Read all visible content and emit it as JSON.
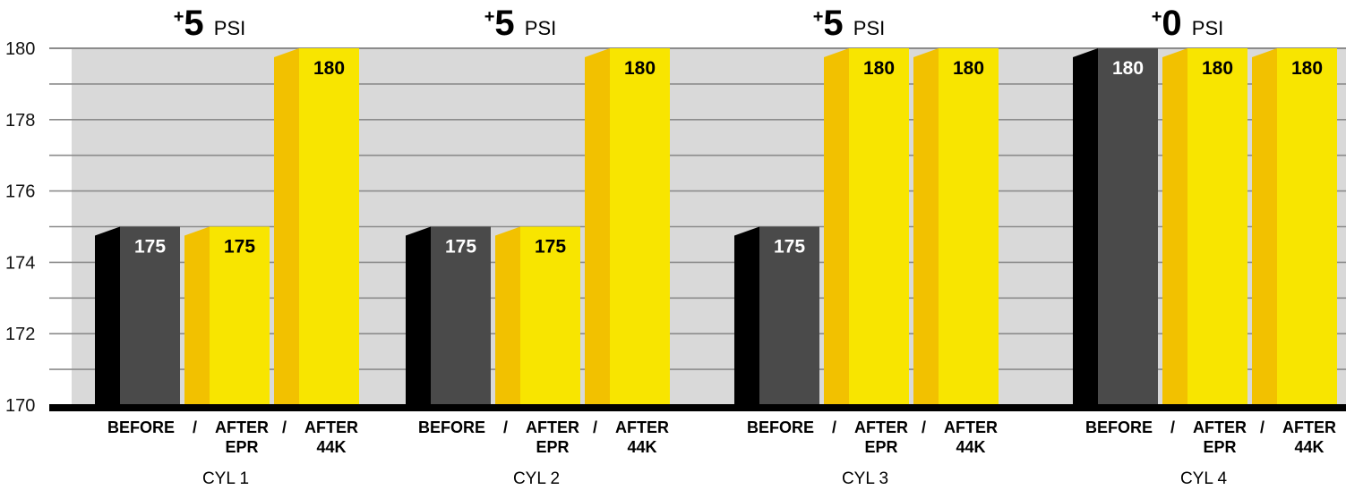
{
  "chart_data": {
    "type": "bar",
    "ylim": [
      170,
      180
    ],
    "y_ticks": [
      "170",
      "172",
      "174",
      "176",
      "178",
      "180"
    ],
    "grid": true,
    "bar_labels": [
      "BEFORE",
      "/",
      "AFTER",
      "EPR",
      "/",
      "AFTER",
      "44K"
    ],
    "groups": [
      {
        "name": "CYL 1",
        "delta_sign": "+",
        "delta_value": "5",
        "delta_unit": "PSI",
        "bars": [
          {
            "label": "BEFORE",
            "value": 175,
            "value_label": "175",
            "color": "#4a4a4a",
            "side_color": "#000000"
          },
          {
            "label": "AFTER EPR",
            "value": 175,
            "value_label": "175",
            "color": "#f8e500",
            "side_color": "#f2c100"
          },
          {
            "label": "AFTER 44K",
            "value": 180,
            "value_label": "180",
            "color": "#f8e500",
            "side_color": "#f2c100"
          }
        ]
      },
      {
        "name": "CYL 2",
        "delta_sign": "+",
        "delta_value": "5",
        "delta_unit": "PSI",
        "bars": [
          {
            "label": "BEFORE",
            "value": 175,
            "value_label": "175",
            "color": "#4a4a4a",
            "side_color": "#000000"
          },
          {
            "label": "AFTER EPR",
            "value": 175,
            "value_label": "175",
            "color": "#f8e500",
            "side_color": "#f2c100"
          },
          {
            "label": "AFTER 44K",
            "value": 180,
            "value_label": "180",
            "color": "#f8e500",
            "side_color": "#f2c100"
          }
        ]
      },
      {
        "name": "CYL 3",
        "delta_sign": "+",
        "delta_value": "5",
        "delta_unit": "PSI",
        "bars": [
          {
            "label": "BEFORE",
            "value": 175,
            "value_label": "175",
            "color": "#4a4a4a",
            "side_color": "#000000"
          },
          {
            "label": "AFTER EPR",
            "value": 180,
            "value_label": "180",
            "color": "#f8e500",
            "side_color": "#f2c100"
          },
          {
            "label": "AFTER 44K",
            "value": 180,
            "value_label": "180",
            "color": "#f8e500",
            "side_color": "#f2c100"
          }
        ]
      },
      {
        "name": "CYL 4",
        "delta_sign": "+",
        "delta_value": "0",
        "delta_unit": "PSI",
        "bars": [
          {
            "label": "BEFORE",
            "value": 180,
            "value_label": "180",
            "color": "#4a4a4a",
            "side_color": "#000000"
          },
          {
            "label": "AFTER EPR",
            "value": 180,
            "value_label": "180",
            "color": "#f8e500",
            "side_color": "#f2c100"
          },
          {
            "label": "AFTER 44K",
            "value": 180,
            "value_label": "180",
            "color": "#f8e500",
            "side_color": "#f2c100"
          }
        ]
      }
    ],
    "colors": {
      "plot_background": "#d9d9d9",
      "gridline": "#8c8c8c",
      "baseline": "#000000",
      "value_label_on_dark": "#ffffff",
      "value_label_on_light": "#000000"
    }
  }
}
